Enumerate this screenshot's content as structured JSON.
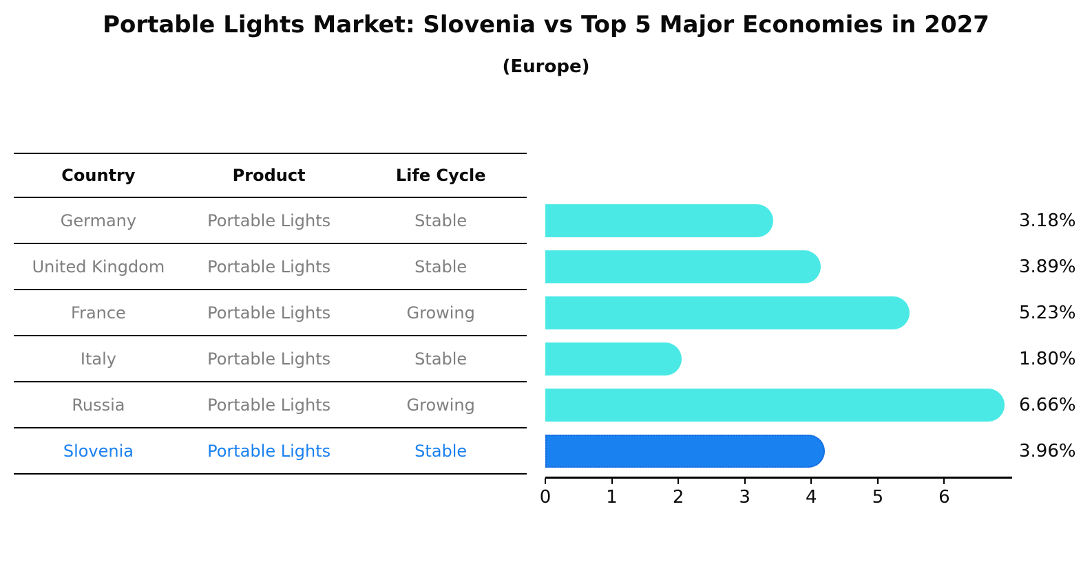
{
  "title": "Portable Lights Market: Slovenia vs Top 5 Major Economies in 2027",
  "subtitle": "(Europe)",
  "table": {
    "headers": {
      "country": "Country",
      "product": "Product",
      "life_cycle": "Life Cycle"
    },
    "rows": [
      {
        "country": "Germany",
        "product": "Portable Lights",
        "life_cycle": "Stable",
        "highlight": false
      },
      {
        "country": "United Kingdom",
        "product": "Portable Lights",
        "life_cycle": "Stable",
        "highlight": false
      },
      {
        "country": "France",
        "product": "Portable Lights",
        "life_cycle": "Growing",
        "highlight": false
      },
      {
        "country": "Italy",
        "product": "Portable Lights",
        "life_cycle": "Stable",
        "highlight": false
      },
      {
        "country": "Russia",
        "product": "Portable Lights",
        "life_cycle": "Growing",
        "highlight": false
      },
      {
        "country": "Slovenia",
        "product": "Portable Lights",
        "life_cycle": "Stable",
        "highlight": true
      }
    ]
  },
  "chart_data": {
    "type": "bar",
    "orientation": "horizontal",
    "title": "Portable Lights Market: Slovenia vs Top 5 Major Economies in 2027",
    "subtitle": "(Europe)",
    "categories": [
      "Germany",
      "United Kingdom",
      "France",
      "Italy",
      "Russia",
      "Slovenia"
    ],
    "values": [
      3.18,
      3.89,
      5.23,
      1.8,
      6.66,
      3.96
    ],
    "value_labels": [
      "3.18%",
      "3.89%",
      "5.23%",
      "1.80%",
      "6.66%",
      "3.96%"
    ],
    "x_ticks": [
      "0",
      "1",
      "2",
      "3",
      "4",
      "5",
      "6"
    ],
    "xlim": [
      0,
      7
    ],
    "grid": false,
    "legend": false,
    "highlight_index": 5
  },
  "colors": {
    "bar": "#4be9e5",
    "highlight_bar": "#1a81f0",
    "highlight_edge": "#1565d8",
    "table_text": "#7f7f7f",
    "highlight_text": "#1a81f0",
    "axis": "#000000"
  }
}
